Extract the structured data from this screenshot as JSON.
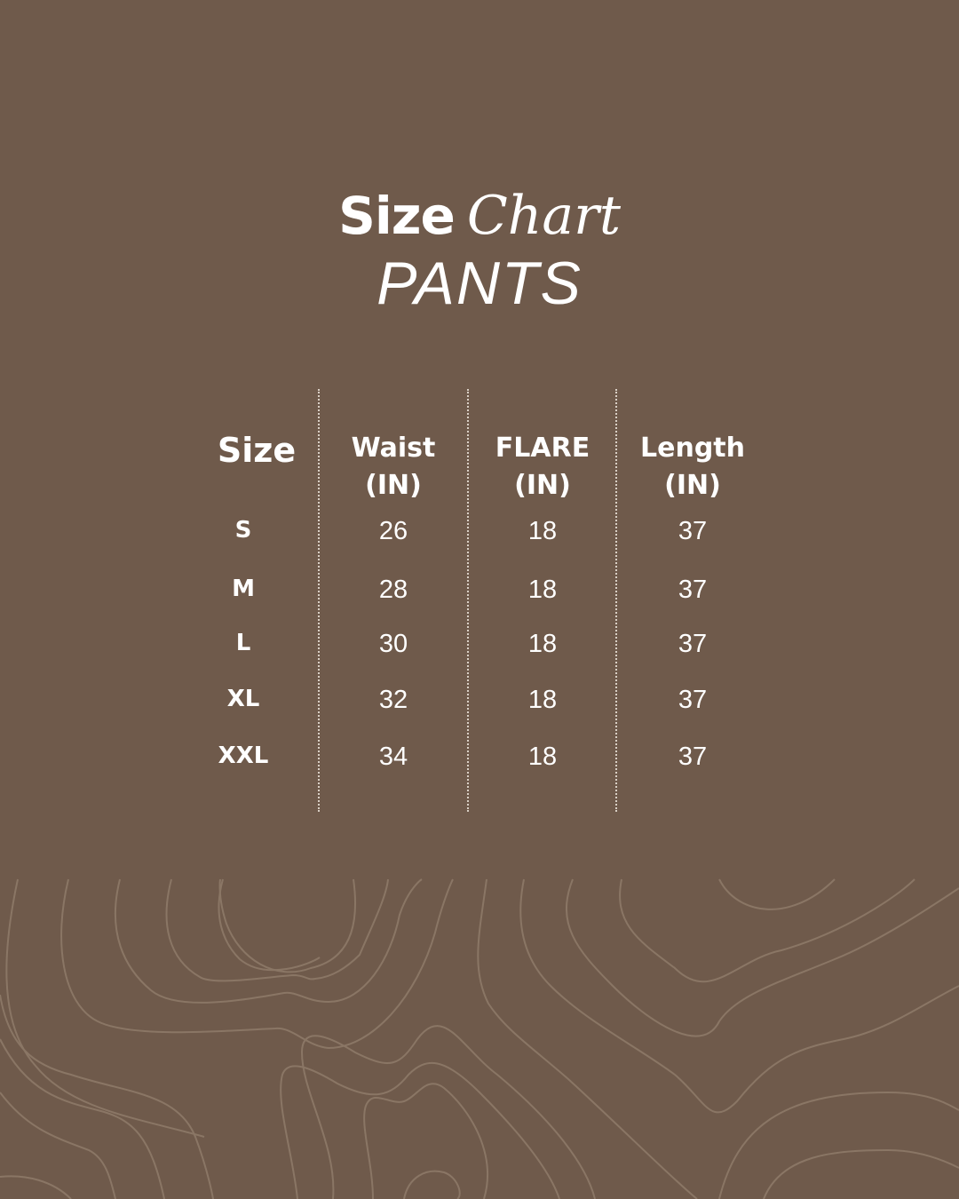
{
  "title": {
    "word1": "Size",
    "word2": "Chart",
    "subtitle": "PANTS"
  },
  "colors": {
    "background": "#6f5a4b",
    "text": "#ffffff",
    "contour_lines": "#8a7665"
  },
  "table": {
    "headers": [
      "Size",
      "Waist\n(IN)",
      "FLARE\n(IN)",
      "Length\n(IN)"
    ],
    "header_lines": [
      [
        "Size"
      ],
      [
        "Waist",
        "(IN)"
      ],
      [
        "FLARE",
        "(IN)"
      ],
      [
        "Length",
        "(IN)"
      ]
    ],
    "rows": [
      [
        "S",
        "26",
        "18",
        "37"
      ],
      [
        "M",
        "28",
        "18",
        "37"
      ],
      [
        "L",
        "30",
        "18",
        "37"
      ],
      [
        "XL",
        "32",
        "18",
        "37"
      ],
      [
        "XXL",
        "34",
        "18",
        "37"
      ]
    ]
  }
}
